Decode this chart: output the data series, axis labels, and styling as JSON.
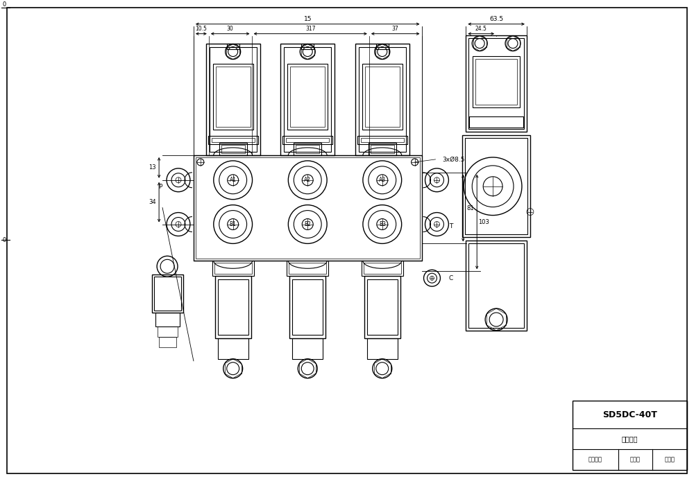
{
  "bg_color": "#ffffff",
  "line_color": "#000000",
  "title_model": "SD5DC-40T",
  "title_row2": "图纸编号",
  "title_row3_left": "设备标记",
  "title_row3_mid": "版本号",
  "title_row3_right": "版本号",
  "dim_top_width": "15",
  "dim_sub": [
    "10.5",
    "30",
    "317",
    "37"
  ],
  "dim_right_63": "63.5",
  "dim_right_245": "24.5",
  "dim_side_13": "13",
  "dim_side_34": "34",
  "dim_right_81": "81",
  "dim_right_103": "103",
  "note_3x85": "3xØ8.5",
  "label_P": "P",
  "label_T": "T",
  "label_C": "C"
}
